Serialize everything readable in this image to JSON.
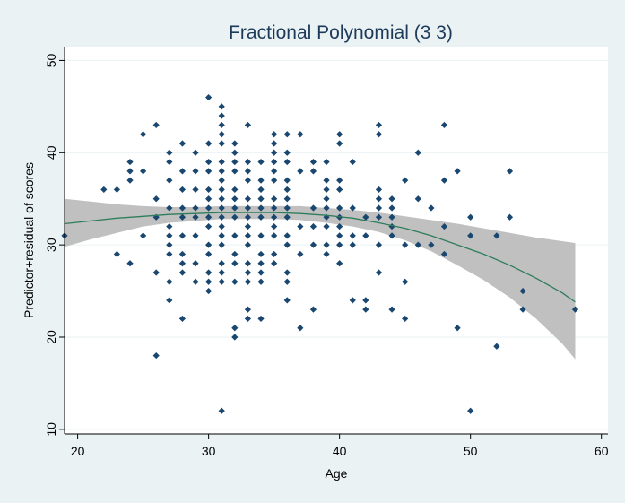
{
  "chart_data": {
    "type": "scatter",
    "title": "Fractional Polynomial (3 3)",
    "xlabel": "Age",
    "ylabel": "Predictor+residual of scores",
    "xlim": [
      19,
      60.5
    ],
    "ylim": [
      9.5,
      51.5
    ],
    "xticks": [
      20,
      30,
      40,
      50,
      60
    ],
    "yticks": [
      10,
      20,
      30,
      40,
      50
    ],
    "grid": "horizontal",
    "colors": {
      "background": "#eaf2f3",
      "plot_area": "#ffffff",
      "points": "#1a476f",
      "fit_line": "#2e7d5b",
      "ci_band": "#c0c0c0",
      "title": "#1e3a5a"
    },
    "series": [
      {
        "type": "scatter",
        "points": [
          [
            19,
            31
          ],
          [
            22,
            36
          ],
          [
            23,
            36
          ],
          [
            23,
            29
          ],
          [
            24,
            39
          ],
          [
            24,
            38
          ],
          [
            24,
            37
          ],
          [
            24,
            28
          ],
          [
            25,
            42
          ],
          [
            25,
            38
          ],
          [
            25,
            31
          ],
          [
            26,
            43
          ],
          [
            26,
            35
          ],
          [
            26,
            33
          ],
          [
            26,
            27
          ],
          [
            26,
            18
          ],
          [
            27,
            40
          ],
          [
            27,
            39
          ],
          [
            27,
            37
          ],
          [
            27,
            34
          ],
          [
            27,
            32
          ],
          [
            27,
            31
          ],
          [
            27,
            30
          ],
          [
            27,
            29
          ],
          [
            27,
            26
          ],
          [
            27,
            24
          ],
          [
            28,
            41
          ],
          [
            28,
            38
          ],
          [
            28,
            36
          ],
          [
            28,
            34
          ],
          [
            28,
            33
          ],
          [
            28,
            31
          ],
          [
            28,
            29
          ],
          [
            28,
            28
          ],
          [
            28,
            27
          ],
          [
            28,
            22
          ],
          [
            29,
            40
          ],
          [
            29,
            38
          ],
          [
            29,
            36
          ],
          [
            29,
            34
          ],
          [
            29,
            33
          ],
          [
            29,
            31
          ],
          [
            29,
            28
          ],
          [
            29,
            26
          ],
          [
            30,
            46
          ],
          [
            30,
            41
          ],
          [
            30,
            39
          ],
          [
            30,
            38
          ],
          [
            30,
            36
          ],
          [
            30,
            35
          ],
          [
            30,
            34
          ],
          [
            30,
            33
          ],
          [
            30,
            32
          ],
          [
            30,
            30
          ],
          [
            30,
            29
          ],
          [
            30,
            27
          ],
          [
            30,
            26
          ],
          [
            30,
            25
          ],
          [
            31,
            45
          ],
          [
            31,
            44
          ],
          [
            31,
            43
          ],
          [
            31,
            42
          ],
          [
            31,
            41
          ],
          [
            31,
            39
          ],
          [
            31,
            38
          ],
          [
            31,
            37
          ],
          [
            31,
            36
          ],
          [
            31,
            35
          ],
          [
            31,
            34
          ],
          [
            31,
            33
          ],
          [
            31,
            32
          ],
          [
            31,
            31
          ],
          [
            31,
            30
          ],
          [
            31,
            28
          ],
          [
            31,
            27
          ],
          [
            31,
            26
          ],
          [
            31,
            12
          ],
          [
            32,
            41
          ],
          [
            32,
            40
          ],
          [
            32,
            39
          ],
          [
            32,
            38
          ],
          [
            32,
            36
          ],
          [
            32,
            35
          ],
          [
            32,
            34
          ],
          [
            32,
            33
          ],
          [
            32,
            31
          ],
          [
            32,
            29
          ],
          [
            32,
            28
          ],
          [
            32,
            26
          ],
          [
            32,
            21
          ],
          [
            32,
            20
          ],
          [
            33,
            43
          ],
          [
            33,
            39
          ],
          [
            33,
            38
          ],
          [
            33,
            37
          ],
          [
            33,
            35
          ],
          [
            33,
            34
          ],
          [
            33,
            33
          ],
          [
            33,
            32
          ],
          [
            33,
            31
          ],
          [
            33,
            30
          ],
          [
            33,
            28
          ],
          [
            33,
            27
          ],
          [
            33,
            26
          ],
          [
            33,
            23
          ],
          [
            33,
            22
          ],
          [
            34,
            39
          ],
          [
            34,
            37
          ],
          [
            34,
            36
          ],
          [
            34,
            35
          ],
          [
            34,
            34
          ],
          [
            34,
            33
          ],
          [
            34,
            31
          ],
          [
            34,
            29
          ],
          [
            34,
            28
          ],
          [
            34,
            27
          ],
          [
            34,
            26
          ],
          [
            34,
            22
          ],
          [
            35,
            42
          ],
          [
            35,
            41
          ],
          [
            35,
            40
          ],
          [
            35,
            39
          ],
          [
            35,
            38
          ],
          [
            35,
            37
          ],
          [
            35,
            35
          ],
          [
            35,
            34
          ],
          [
            35,
            33
          ],
          [
            35,
            32
          ],
          [
            35,
            31
          ],
          [
            35,
            29
          ],
          [
            35,
            28
          ],
          [
            36,
            42
          ],
          [
            36,
            40
          ],
          [
            36,
            39
          ],
          [
            36,
            37
          ],
          [
            36,
            36
          ],
          [
            36,
            35
          ],
          [
            36,
            34
          ],
          [
            36,
            33
          ],
          [
            36,
            31
          ],
          [
            36,
            30
          ],
          [
            36,
            27
          ],
          [
            36,
            26
          ],
          [
            36,
            24
          ],
          [
            37,
            42
          ],
          [
            37,
            38
          ],
          [
            37,
            32
          ],
          [
            37,
            29
          ],
          [
            37,
            21
          ],
          [
            38,
            39
          ],
          [
            38,
            38
          ],
          [
            38,
            34
          ],
          [
            38,
            32
          ],
          [
            38,
            30
          ],
          [
            38,
            23
          ],
          [
            39,
            39
          ],
          [
            39,
            37
          ],
          [
            39,
            36
          ],
          [
            39,
            35
          ],
          [
            39,
            34
          ],
          [
            39,
            33
          ],
          [
            39,
            32
          ],
          [
            39,
            30
          ],
          [
            39,
            29
          ],
          [
            40,
            42
          ],
          [
            40,
            41
          ],
          [
            40,
            37
          ],
          [
            40,
            36
          ],
          [
            40,
            34
          ],
          [
            40,
            33
          ],
          [
            40,
            32
          ],
          [
            40,
            31
          ],
          [
            40,
            30
          ],
          [
            40,
            28
          ],
          [
            41,
            39
          ],
          [
            41,
            34
          ],
          [
            41,
            31
          ],
          [
            41,
            30
          ],
          [
            41,
            24
          ],
          [
            42,
            33
          ],
          [
            42,
            31
          ],
          [
            42,
            24
          ],
          [
            42,
            23
          ],
          [
            43,
            43
          ],
          [
            43,
            42
          ],
          [
            43,
            36
          ],
          [
            43,
            35
          ],
          [
            43,
            34
          ],
          [
            43,
            33
          ],
          [
            43,
            30
          ],
          [
            43,
            27
          ],
          [
            44,
            35
          ],
          [
            44,
            34
          ],
          [
            44,
            33
          ],
          [
            44,
            32
          ],
          [
            44,
            31
          ],
          [
            44,
            23
          ],
          [
            45,
            37
          ],
          [
            45,
            30
          ],
          [
            45,
            26
          ],
          [
            45,
            22
          ],
          [
            46,
            40
          ],
          [
            46,
            35
          ],
          [
            46,
            30
          ],
          [
            47,
            34
          ],
          [
            47,
            30
          ],
          [
            48,
            43
          ],
          [
            48,
            37
          ],
          [
            48,
            32
          ],
          [
            48,
            29
          ],
          [
            49,
            38
          ],
          [
            49,
            21
          ],
          [
            50,
            33
          ],
          [
            50,
            31
          ],
          [
            50,
            12
          ],
          [
            52,
            31
          ],
          [
            52,
            19
          ],
          [
            53,
            38
          ],
          [
            53,
            33
          ],
          [
            54,
            25
          ],
          [
            54,
            23
          ],
          [
            58,
            23
          ]
        ]
      },
      {
        "type": "line",
        "x": [
          19,
          21,
          23,
          25,
          27,
          29,
          31,
          33,
          35,
          37,
          39,
          41,
          43,
          45,
          47,
          49,
          51,
          53,
          55,
          57,
          58
        ],
        "y": [
          32.3,
          32.6,
          32.9,
          33.1,
          33.3,
          33.4,
          33.5,
          33.5,
          33.5,
          33.4,
          33.2,
          32.9,
          32.4,
          31.8,
          31.0,
          30.0,
          29.0,
          27.8,
          26.4,
          24.8,
          23.8
        ],
        "lower": [
          29.8,
          30.6,
          31.3,
          32.0,
          32.4,
          32.6,
          32.8,
          32.8,
          32.8,
          32.7,
          32.4,
          32.0,
          31.4,
          30.5,
          29.3,
          27.8,
          26.2,
          24.3,
          22.0,
          19.3,
          17.6
        ],
        "upper": [
          35.0,
          34.7,
          34.4,
          34.2,
          34.1,
          34.1,
          34.2,
          34.2,
          34.2,
          34.2,
          34.0,
          33.8,
          33.5,
          33.1,
          32.7,
          32.3,
          31.8,
          31.3,
          30.8,
          30.4,
          30.2
        ]
      }
    ]
  }
}
